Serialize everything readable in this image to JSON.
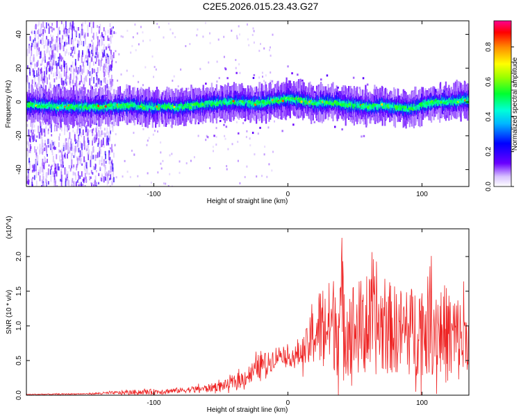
{
  "title": "C2E5.2026.015.23.43.G27",
  "colors": {
    "snr_line": "#ee2222",
    "axis": "#000000"
  },
  "chart_data": [
    {
      "type": "heatmap",
      "xlabel": "Height of straight line (km)",
      "ylabel": "Frequency (Hz)",
      "xlim": [
        -195,
        135
      ],
      "ylim": [
        -50,
        48
      ],
      "x_ticks": [
        -100,
        0,
        100
      ],
      "x_tick_labels": [
        "-100",
        "0",
        "100"
      ],
      "y_ticks": [
        -40,
        -20,
        0,
        20,
        40
      ],
      "y_tick_labels": [
        "-40",
        "-20",
        "0",
        "20",
        "40"
      ],
      "colorbar": {
        "label": "Normalized spectral amplitude",
        "range": [
          0,
          0.95
        ],
        "ticks": [
          0.0,
          0.2,
          0.4,
          0.6,
          0.8
        ],
        "tick_labels": [
          "0.0",
          "0.2",
          "0.4",
          "0.6",
          "0.8"
        ]
      },
      "band_centerline": [
        [
          -185,
          -2
        ],
        [
          -160,
          -3
        ],
        [
          -140,
          -3
        ],
        [
          -120,
          -2
        ],
        [
          -100,
          -3
        ],
        [
          -80,
          -3
        ],
        [
          -60,
          -1
        ],
        [
          -40,
          0
        ],
        [
          -25,
          -1
        ],
        [
          -15,
          0
        ],
        [
          -5,
          1
        ],
        [
          0,
          2
        ],
        [
          10,
          1
        ],
        [
          20,
          -1
        ],
        [
          30,
          0
        ],
        [
          40,
          -1
        ],
        [
          50,
          -2
        ],
        [
          60,
          -3
        ],
        [
          70,
          -2
        ],
        [
          80,
          -3
        ],
        [
          90,
          -4
        ],
        [
          100,
          -2
        ],
        [
          110,
          0
        ],
        [
          120,
          0
        ],
        [
          130,
          1
        ]
      ],
      "noise_region_x": [
        -195,
        -130
      ]
    },
    {
      "type": "line",
      "xlabel": "Height of straight line (km)",
      "ylabel": "SNR (10 * v/v)",
      "y_multiplier": "(x10^4)",
      "xlim": [
        -195,
        135
      ],
      "ylim": [
        0,
        2.4
      ],
      "x_ticks": [
        -100,
        0,
        100
      ],
      "x_tick_labels": [
        "-100",
        "0",
        "100"
      ],
      "y_ticks": [
        0.0,
        0.5,
        1.0,
        1.5,
        2.0
      ],
      "y_tick_labels": [
        "0.0",
        "0.5",
        "1.0",
        "1.5",
        "2.0"
      ],
      "envelope": {
        "x": [
          -195,
          -150,
          -120,
          -100,
          -80,
          -60,
          -45,
          -35,
          -25,
          -20,
          -15,
          -10,
          -5,
          0,
          5,
          10,
          15,
          20,
          25,
          30,
          35,
          40,
          45,
          50,
          60,
          70,
          80,
          90,
          100,
          110,
          120,
          130,
          135
        ],
        "mean": [
          0.01,
          0.02,
          0.04,
          0.05,
          0.07,
          0.1,
          0.15,
          0.22,
          0.35,
          0.45,
          0.45,
          0.55,
          0.6,
          0.55,
          0.55,
          0.6,
          0.7,
          0.9,
          1.0,
          1.0,
          1.05,
          1.1,
          1.0,
          0.95,
          1.0,
          1.0,
          0.95,
          0.9,
          1.0,
          1.0,
          0.85,
          0.8,
          0.9
        ],
        "amp": [
          0.01,
          0.01,
          0.04,
          0.05,
          0.05,
          0.07,
          0.1,
          0.15,
          0.2,
          0.25,
          0.2,
          0.2,
          0.15,
          0.15,
          0.2,
          0.25,
          0.4,
          0.6,
          0.8,
          0.8,
          0.9,
          1.2,
          0.9,
          0.9,
          0.9,
          0.9,
          0.8,
          0.8,
          0.9,
          0.9,
          0.9,
          0.8,
          0.6
        ]
      }
    }
  ]
}
